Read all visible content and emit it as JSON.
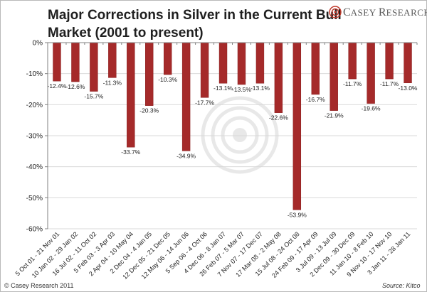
{
  "brand": {
    "first_cap": "C",
    "first_rest": "ASEY",
    "second_cap": "R",
    "second_rest": "ESEARCH.COM",
    "color": "#c0392b"
  },
  "footer": {
    "copyright": "© Casey Research 2011",
    "source": "Source: Kitco"
  },
  "colors": {
    "bar": "#a52a2a",
    "bar_edge": "#8a1f1f",
    "grid": "#d9d9d9",
    "axis": "#808080"
  },
  "chart_data": {
    "type": "bar",
    "title": "Major Corrections in Silver in the Current Bull",
    "subtitle": "Market (2001 to present)",
    "xlabel": "",
    "ylabel": "",
    "ylim": [
      -60,
      0
    ],
    "yticks": [
      0,
      -10,
      -20,
      -30,
      -40,
      -50,
      -60
    ],
    "ytick_labels": [
      "0%",
      "-10%",
      "-20%",
      "-30%",
      "-40%",
      "-50%",
      "-60%"
    ],
    "grid": true,
    "categories": [
      "5 Oct 01 - 21  Nov 01",
      "10 Jan 02 - 29 Jan 02",
      "16 Jul 02 - 11 Oct 02",
      "5 Feb 03 - 3 Apr 03",
      "2 Apr 04 - 10 May 04",
      "2 Dec 04 - 4 Jan 05",
      "12 Dec 05 - 21 Dec 05",
      "12 May 06 - 14 Jun 06",
      "5 Sep 06 - 4 Oct 06",
      "4 Dec 06 - 8 Jan 07",
      "26 Feb 07 - 5 Mar 07",
      "7 Nov 07 - 17 Dec 07",
      "17 Mar 08 - 2 May 08",
      "15 Jul 08 - 24 Oct 08",
      "24 Feb 09 - 17 Apr 09",
      "3 Jul 09 - 13 Jul 09",
      "2 Dec 09 - 30 Dec 09",
      "11 Jan 10 - 8 Feb 10",
      "9 Nov 10 - 17 Nov 10",
      "3 Jan 11 - 28 Jan 11"
    ],
    "values": [
      -12.4,
      -12.6,
      -15.7,
      -11.3,
      -33.7,
      -20.3,
      -10.3,
      -34.9,
      -17.7,
      -13.1,
      -13.5,
      -13.1,
      -22.6,
      -53.9,
      -16.7,
      -21.9,
      -11.7,
      -19.6,
      -11.7,
      -13.0
    ],
    "labels": [
      "-12.4%",
      "-12.6%",
      "-15.7%",
      "-11.3%",
      "-33.7%",
      "-20.3%",
      "-10.3%",
      "-34.9%",
      "-17.7%",
      "-13.1%",
      "-13.5%",
      "-13.1%",
      "-22.6%",
      "-53.9%",
      "-16.7%",
      "-21.9%",
      "-11.7%",
      "-19.6%",
      "-11.7%",
      "-13.0%"
    ]
  }
}
